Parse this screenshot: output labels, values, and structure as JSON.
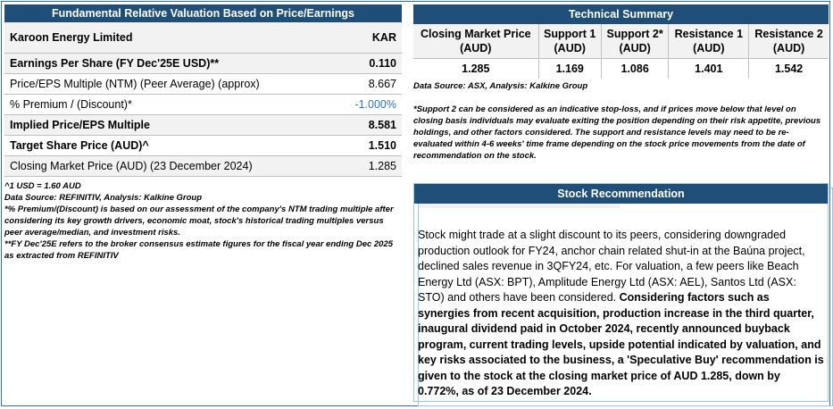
{
  "valuation": {
    "title": "Fundamental Relative Valuation Based on Price/Earnings",
    "company": "Karoon Energy Limited",
    "ticker": "KAR",
    "rows": [
      {
        "label": "Earnings Per Share (FY Dec'25E USD)**",
        "value": "0.110"
      },
      {
        "label": "Price/EPS Multiple (NTM) (Peer Average) (approx)",
        "value": "8.667"
      },
      {
        "label": "% Premium / (Discount)*",
        "value": "-1.000%"
      },
      {
        "label": "Implied Price/EPS Multiple",
        "value": "8.581"
      },
      {
        "label": "Target Share Price (AUD)^",
        "value": "1.510"
      },
      {
        "label": "Closing Market Price (AUD) (23 December 2024)",
        "value": "1.285"
      }
    ],
    "recommendation_label": "Recommendation",
    "recommendation_value": "Speculative Buy",
    "notes": {
      "fx": "^1 USD = 1.60 AUD",
      "source": "Data Source: REFINITIV, Analysis: Kalkine Group",
      "premium": "*% Premium/(Discount) is based on our assessment of the company's NTM trading multiple after considering its key growth drivers, economic moat, stock's historical trading multiples versus peer average/median, and investment risks.",
      "fy": "**FY Dec'25E refers to the broker consensus estimate figures for the fiscal year ending Dec 2025 as extracted from REFINITIV"
    }
  },
  "technical": {
    "title": "Technical Summary",
    "headers": [
      {
        "line1": "Closing Market Price",
        "line2": "(AUD)"
      },
      {
        "line1": "Support 1",
        "line2": "(AUD)"
      },
      {
        "line1": "Support 2*",
        "line2": "(AUD)"
      },
      {
        "line1": "Resistance 1",
        "line2": "(AUD)"
      },
      {
        "line1": "Resistance 2",
        "line2": "(AUD)"
      }
    ],
    "values": [
      "1.285",
      "1.169",
      "1.086",
      "1.401",
      "1.542"
    ],
    "source": "Data Source: ASX, Analysis: Kalkine Group",
    "note": "*Support 2 can be considered as an indicative stop-loss, and if prices move below that level on closing basis individuals may evaluate exiting the position depending on their risk appetite, previous holdings, and other factors considered. The support and resistance levels may need to be re-evaluated within 4-6 weeks' time frame depending on the stock price movements from the date of recommendation on the stock."
  },
  "stock_recommendation": {
    "title": "Stock Recommendation",
    "text_plain": "Stock might trade at a slight discount to its peers, considering downgraded production outlook for FY24, anchor chain related shut-in at the Baúna project, declined sales revenue in 3QFY24, etc. For valuation, a few peers like Beach Energy Ltd (ASX: BPT), Amplitude Energy Ltd (ASX: AEL), Santos Ltd (ASX: STO) and others have been considered. ",
    "text_bold": "Considering factors such as synergies from recent acquisition, production increase in the third quarter, inaugural dividend paid in October 2024, recently announced buyback program, current trading levels, upside potential indicated by valuation, and key risks associated to the business, a 'Speculative Buy' recommendation is given to the stock at the closing market price of AUD 1.285, down by 0.772%, as of 23 December 2024."
  },
  "colors": {
    "header_bg": "#1f4e79",
    "accent": "#2e75b6"
  }
}
